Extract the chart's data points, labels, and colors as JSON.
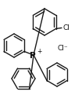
{
  "bg_color": "#ffffff",
  "line_color": "#1a1a1a",
  "line_width": 1.0,
  "text_color": "#111111",
  "Cl_label": "Cl",
  "Cl_ion_label": "Cl⁻",
  "P_label": "P",
  "P_charge": "+"
}
